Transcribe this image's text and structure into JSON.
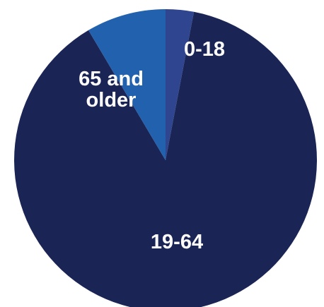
{
  "chart_data": {
    "type": "pie",
    "title": "",
    "start_angle_deg": 0,
    "direction": "clockwise",
    "slices": [
      {
        "label": "0-18",
        "label_lines": [
          "0-18"
        ],
        "value": 3.0,
        "color": "#2f4590"
      },
      {
        "label": "19-64",
        "label_lines": [
          "19-64"
        ],
        "value": 88.5,
        "color": "#1a2556"
      },
      {
        "label": "65 and older",
        "label_lines": [
          "65 and",
          "older"
        ],
        "value": 8.5,
        "color": "#2261ad"
      }
    ]
  }
}
